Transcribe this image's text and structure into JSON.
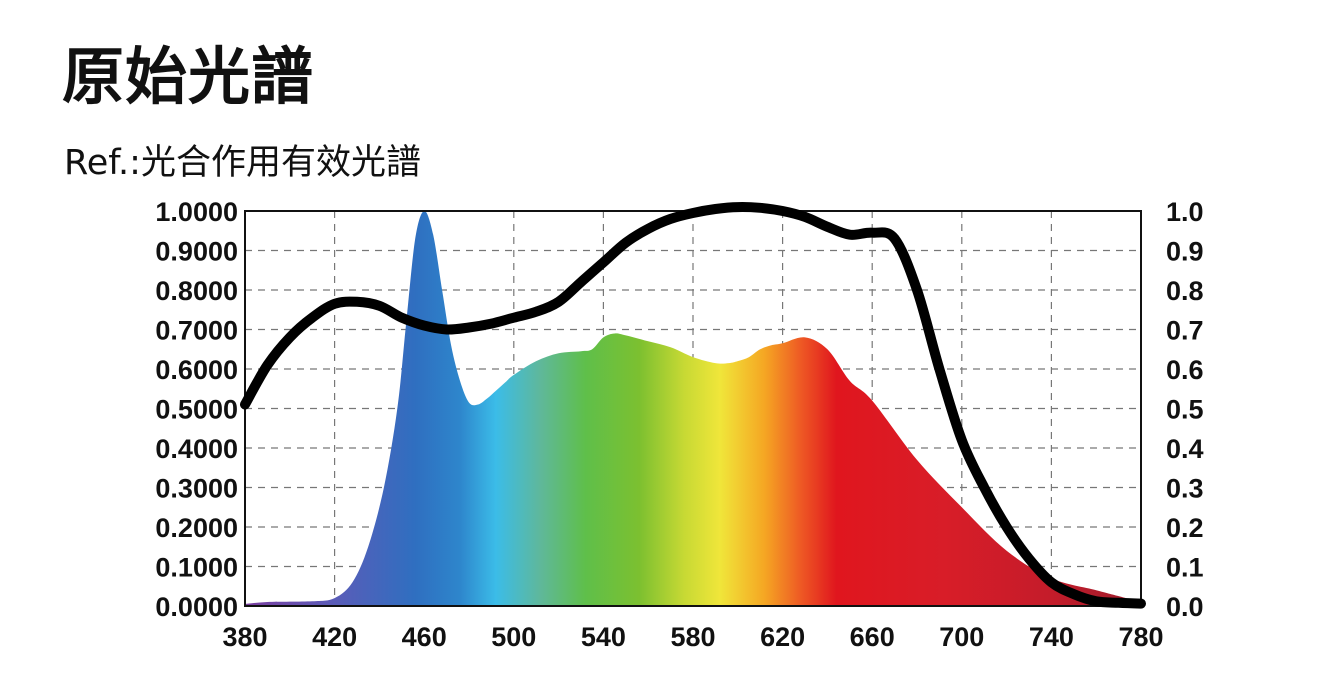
{
  "title": "原始光譜",
  "subtitle": "Ref.:光合作用有效光譜",
  "chart_data": {
    "type": "area",
    "xlabel": "",
    "ylabel": "",
    "xlim": [
      380,
      780
    ],
    "ylim": [
      0,
      1
    ],
    "y2lim": [
      0,
      1
    ],
    "grid": true,
    "x_ticks": [
      "380",
      "420",
      "460",
      "500",
      "540",
      "580",
      "620",
      "660",
      "700",
      "740",
      "780"
    ],
    "y_ticks": [
      "0.0000",
      "0.1000",
      "0.2000",
      "0.3000",
      "0.4000",
      "0.5000",
      "0.6000",
      "0.7000",
      "0.8000",
      "0.9000",
      "1.0000"
    ],
    "y2_ticks": [
      "0.0",
      "0.1",
      "0.2",
      "0.3",
      "0.4",
      "0.5",
      "0.6",
      "0.7",
      "0.8",
      "0.9",
      "1.0"
    ],
    "series": [
      {
        "axis": "left",
        "style": "spectrum-gradient-area",
        "x": [
          380,
          390,
          410,
          420,
          428,
          435,
          442,
          448,
          452,
          456,
          460,
          464,
          468,
          472,
          476,
          480,
          484,
          488,
          492,
          496,
          500,
          510,
          520,
          530,
          535,
          540,
          545,
          550,
          560,
          570,
          580,
          590,
          596,
          600,
          605,
          610,
          615,
          620,
          630,
          640,
          650,
          660,
          680,
          700,
          720,
          740,
          760,
          770,
          780
        ],
        "y": [
          0.005,
          0.01,
          0.012,
          0.02,
          0.06,
          0.15,
          0.3,
          0.5,
          0.72,
          0.93,
          1.0,
          0.94,
          0.8,
          0.66,
          0.57,
          0.515,
          0.51,
          0.525,
          0.545,
          0.565,
          0.585,
          0.62,
          0.64,
          0.645,
          0.65,
          0.68,
          0.69,
          0.685,
          0.67,
          0.655,
          0.63,
          0.615,
          0.615,
          0.62,
          0.63,
          0.65,
          0.66,
          0.665,
          0.68,
          0.65,
          0.57,
          0.52,
          0.37,
          0.25,
          0.14,
          0.07,
          0.04,
          0.025,
          0.01
        ]
      },
      {
        "axis": "right",
        "style": "thick-black-line",
        "x": [
          380,
          390,
          400,
          410,
          420,
          430,
          440,
          450,
          460,
          470,
          480,
          490,
          500,
          510,
          520,
          530,
          540,
          550,
          560,
          570,
          580,
          590,
          600,
          610,
          620,
          630,
          640,
          650,
          660,
          670,
          680,
          690,
          700,
          710,
          720,
          730,
          740,
          750,
          760,
          770,
          780
        ],
        "y": [
          0.51,
          0.61,
          0.68,
          0.73,
          0.765,
          0.77,
          0.76,
          0.73,
          0.71,
          0.7,
          0.705,
          0.715,
          0.73,
          0.745,
          0.77,
          0.82,
          0.87,
          0.92,
          0.955,
          0.98,
          0.995,
          1.005,
          1.01,
          1.008,
          1.0,
          0.985,
          0.96,
          0.94,
          0.945,
          0.93,
          0.8,
          0.6,
          0.42,
          0.3,
          0.2,
          0.12,
          0.06,
          0.03,
          0.012,
          0.008,
          0.006
        ]
      }
    ],
    "colors": {
      "spectrum": [
        "#7b3fa0",
        "#5a5cb8",
        "#2f6fc0",
        "#2e86cc",
        "#3bbce8",
        "#5fbf4a",
        "#7cc030",
        "#e8e430",
        "#f5a623",
        "#ee5a24",
        "#e0161e",
        "#d81d28",
        "#c41c2a",
        "#9c1c2c"
      ],
      "line": "#000000",
      "grid": "#777777"
    }
  }
}
